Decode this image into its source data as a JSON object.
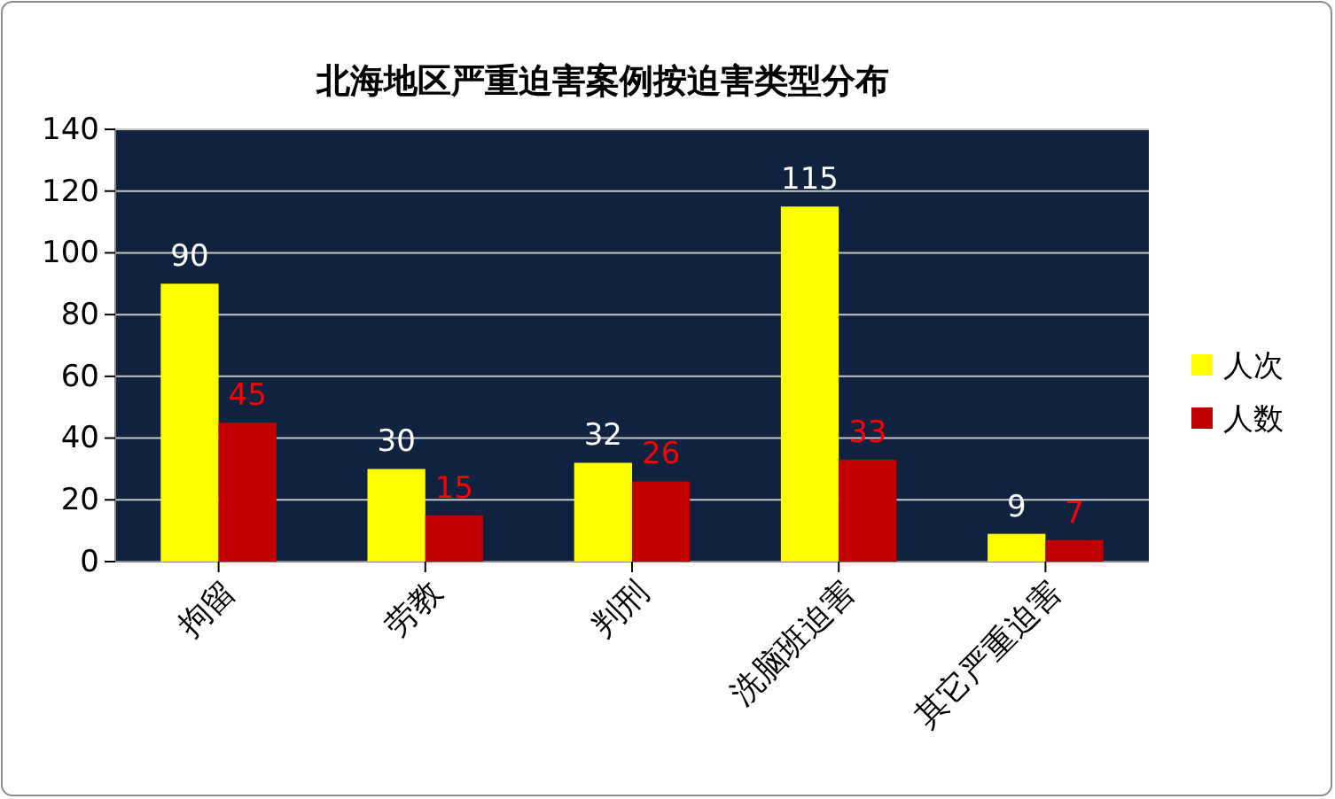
{
  "chart_data": {
    "type": "bar",
    "title": "北海地区严重迫害案例按迫害类型分布",
    "categories": [
      "拘留",
      "劳教",
      "判刑",
      "洗脑班迫害",
      "其它严重迫害"
    ],
    "series": [
      {
        "name": "人次",
        "color": "#ffff00",
        "values": [
          90,
          30,
          32,
          115,
          9
        ]
      },
      {
        "name": "人数",
        "color": "#c00000",
        "values": [
          45,
          15,
          26,
          33,
          7
        ]
      }
    ],
    "ylim": [
      0,
      140
    ],
    "yticks": [
      0,
      20,
      40,
      60,
      80,
      100,
      120,
      140
    ],
    "grid": "y",
    "legend": "right",
    "data_labels": true
  }
}
